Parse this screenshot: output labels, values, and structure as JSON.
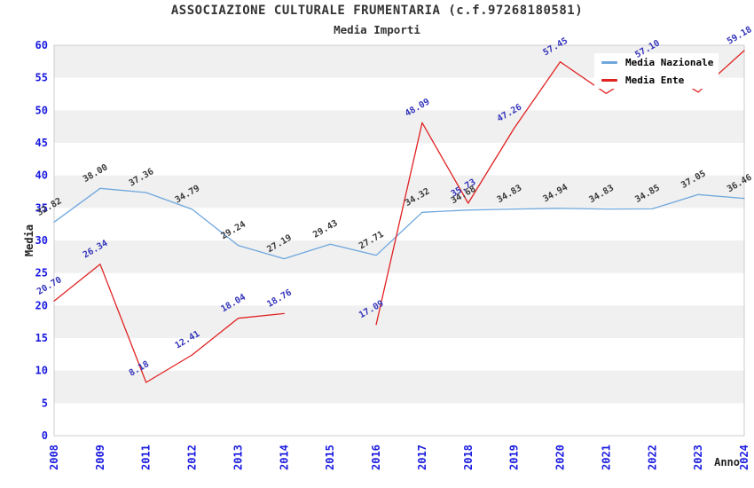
{
  "chart_data": {
    "type": "line",
    "title": "ASSOCIAZIONE CULTURALE FRUMENTARIA (c.f.97268180581)",
    "subtitle": "Media Importi",
    "xlabel": "Anno",
    "ylabel": "Media",
    "ylim": [
      0,
      60
    ],
    "ytick_step": 5,
    "ytick_labels": [
      "0",
      "5",
      "10",
      "15",
      "20",
      "25",
      "30",
      "35",
      "40",
      "45",
      "50",
      "55",
      "60"
    ],
    "grid": "horizontal alternating bands",
    "legend_position": "top-right",
    "categories": [
      "2008",
      "2009",
      "2011",
      "2012",
      "2013",
      "2014",
      "2015",
      "2016",
      "2017",
      "2018",
      "2019",
      "2020",
      "2021",
      "2022",
      "2023",
      "2024"
    ],
    "series": [
      {
        "name": "Media Nazionale",
        "color": "#6fa7dd",
        "label_color": "#3a3a3a",
        "values": [
          32.82,
          38.0,
          37.36,
          34.79,
          29.24,
          27.19,
          29.43,
          27.71,
          34.32,
          34.68,
          34.83,
          34.94,
          34.83,
          34.85,
          37.05,
          36.46
        ],
        "labels": [
          "32.82",
          "38.00",
          "37.36",
          "34.79",
          "29.24",
          "27.19",
          "29.43",
          "27.71",
          "34.32",
          "34.68",
          "34.83",
          "34.94",
          "34.83",
          "34.85",
          "37.05",
          "36.46"
        ]
      },
      {
        "name": "Media Ente",
        "color": "#e02222",
        "label_color": "#3434bb",
        "values": [
          20.7,
          26.34,
          8.18,
          12.41,
          18.04,
          18.76,
          null,
          17.09,
          48.09,
          35.73,
          47.26,
          57.45,
          52.6,
          57.1,
          52.8,
          59.18
        ],
        "labels": [
          "20.70",
          "26.34",
          "8.18",
          "12.41",
          "18.04",
          "18.76",
          "",
          "17.09",
          "48.09",
          "35.73",
          "47.26",
          "57.45",
          "",
          "57.10",
          "",
          "59.18"
        ]
      }
    ],
    "style": {
      "tick_color": "#1a1ae0",
      "band_color": "#f0f0f0",
      "border_color": "#cccccc",
      "title_color": "#333333"
    }
  }
}
